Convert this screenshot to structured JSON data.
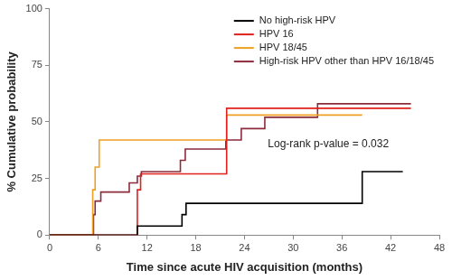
{
  "chart_data": {
    "type": "step",
    "x_label": "Time since acute HIV acquisition (months)",
    "y_label": "% Cumulative probability",
    "xlim": [
      0,
      48
    ],
    "xticks": [
      0,
      6,
      12,
      18,
      24,
      30,
      36,
      42,
      48
    ],
    "ylim": [
      0,
      100
    ],
    "yticks": [
      0,
      25,
      50,
      75,
      100
    ],
    "grid": false,
    "legend": "upper right",
    "annotations": [
      {
        "text": "Log-rank p-value = 0.032"
      }
    ],
    "series": [
      {
        "name": "No high-risk HPV",
        "color": "#000000",
        "x": [
          0,
          10.8,
          16.3,
          16.8,
          38.5,
          43.5
        ],
        "values": [
          0,
          4,
          9,
          14,
          28,
          28
        ]
      },
      {
        "name": "HPV 16",
        "color": "#e0201b",
        "x": [
          0,
          10.8,
          11.2,
          21.8,
          44.5
        ],
        "values": [
          0,
          20,
          27,
          56,
          56
        ]
      },
      {
        "name": "HPV 18/45",
        "color": "#f0a020",
        "x": [
          0,
          5.3,
          5.6,
          6.1,
          21.8,
          38.5
        ],
        "values": [
          0,
          20,
          30,
          42,
          53,
          53
        ]
      },
      {
        "name": "High-risk HPV other than HPV 16/18/45",
        "color": "#8b2b3c",
        "x": [
          0,
          5.4,
          5.6,
          6.3,
          9.8,
          10.8,
          11.3,
          16.1,
          16.7,
          21.7,
          23.6,
          26.5,
          33.0,
          44.5
        ],
        "values": [
          0,
          9,
          15,
          19,
          23,
          26,
          28,
          33,
          38,
          42,
          47,
          52,
          58,
          58
        ]
      }
    ]
  }
}
